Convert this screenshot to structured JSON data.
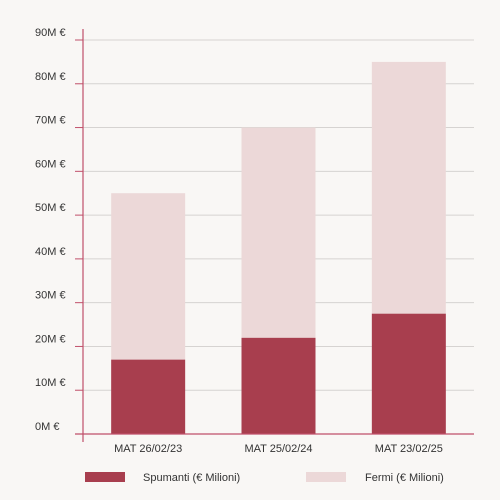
{
  "chart_data": {
    "type": "bar",
    "stacked": true,
    "categories": [
      "MAT 26/02/23",
      "MAT 25/02/24",
      "MAT 23/02/25"
    ],
    "series": [
      {
        "name": "Spumanti (€ Milioni)",
        "values": [
          17,
          22,
          27.5
        ],
        "color": "#a83e4e"
      },
      {
        "name": "Fermi (€ Milioni)",
        "values": [
          38,
          48,
          57.5
        ],
        "color": "#ecd8d8"
      }
    ],
    "y_ticks": [
      "0M €",
      "10M €",
      "20M €",
      "30M €",
      "40M €",
      "50M  €",
      "60M €",
      "70M €",
      "80M €",
      "90M €"
    ],
    "ylim": [
      0,
      90
    ],
    "grid": true,
    "legend_position": "bottom",
    "axis_color": "#c0506a",
    "grid_color": "#d6d3d1"
  }
}
